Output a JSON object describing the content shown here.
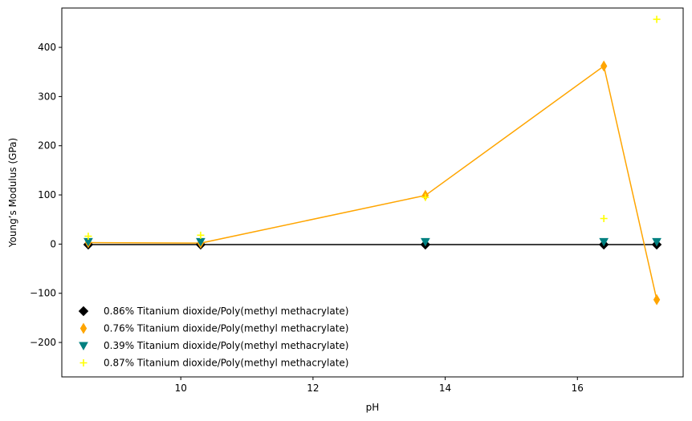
{
  "chart_data": {
    "type": "scatter",
    "title": "",
    "xlabel": "pH",
    "ylabel": "Young’s Modulus (GPa)",
    "xlim": [
      8.2,
      17.6
    ],
    "ylim": [
      -270,
      480
    ],
    "xticks": [
      10,
      12,
      14,
      16
    ],
    "yticks": [
      -200,
      -100,
      0,
      100,
      200,
      300,
      400
    ],
    "x": [
      8.6,
      10.3,
      13.7,
      16.4,
      17.2
    ],
    "legend_position": "lower-left",
    "grid": false,
    "series": [
      {
        "name": "0.86% Titanium dioxide/Poly(methyl methacrylate)",
        "marker": "diamond",
        "color": "#000000",
        "line": true,
        "values": [
          -1,
          -1,
          -1,
          -1,
          -1
        ]
      },
      {
        "name": "0.76% Titanium dioxide/Poly(methyl methacrylate)",
        "marker": "thin-diamond",
        "color": "#FFA500",
        "line": true,
        "values": [
          3,
          2,
          99,
          362,
          -113
        ]
      },
      {
        "name": "0.39% Titanium dioxide/Poly(methyl methacrylate)",
        "marker": "triangle-down",
        "color": "#008080",
        "line": false,
        "values": [
          5,
          5,
          5,
          5,
          5
        ]
      },
      {
        "name": "0.87% Titanium dioxide/Poly(methyl methacrylate)",
        "marker": "plus",
        "color": "#FFFF00",
        "line": false,
        "values": [
          16,
          18,
          95,
          52,
          457
        ]
      }
    ]
  }
}
